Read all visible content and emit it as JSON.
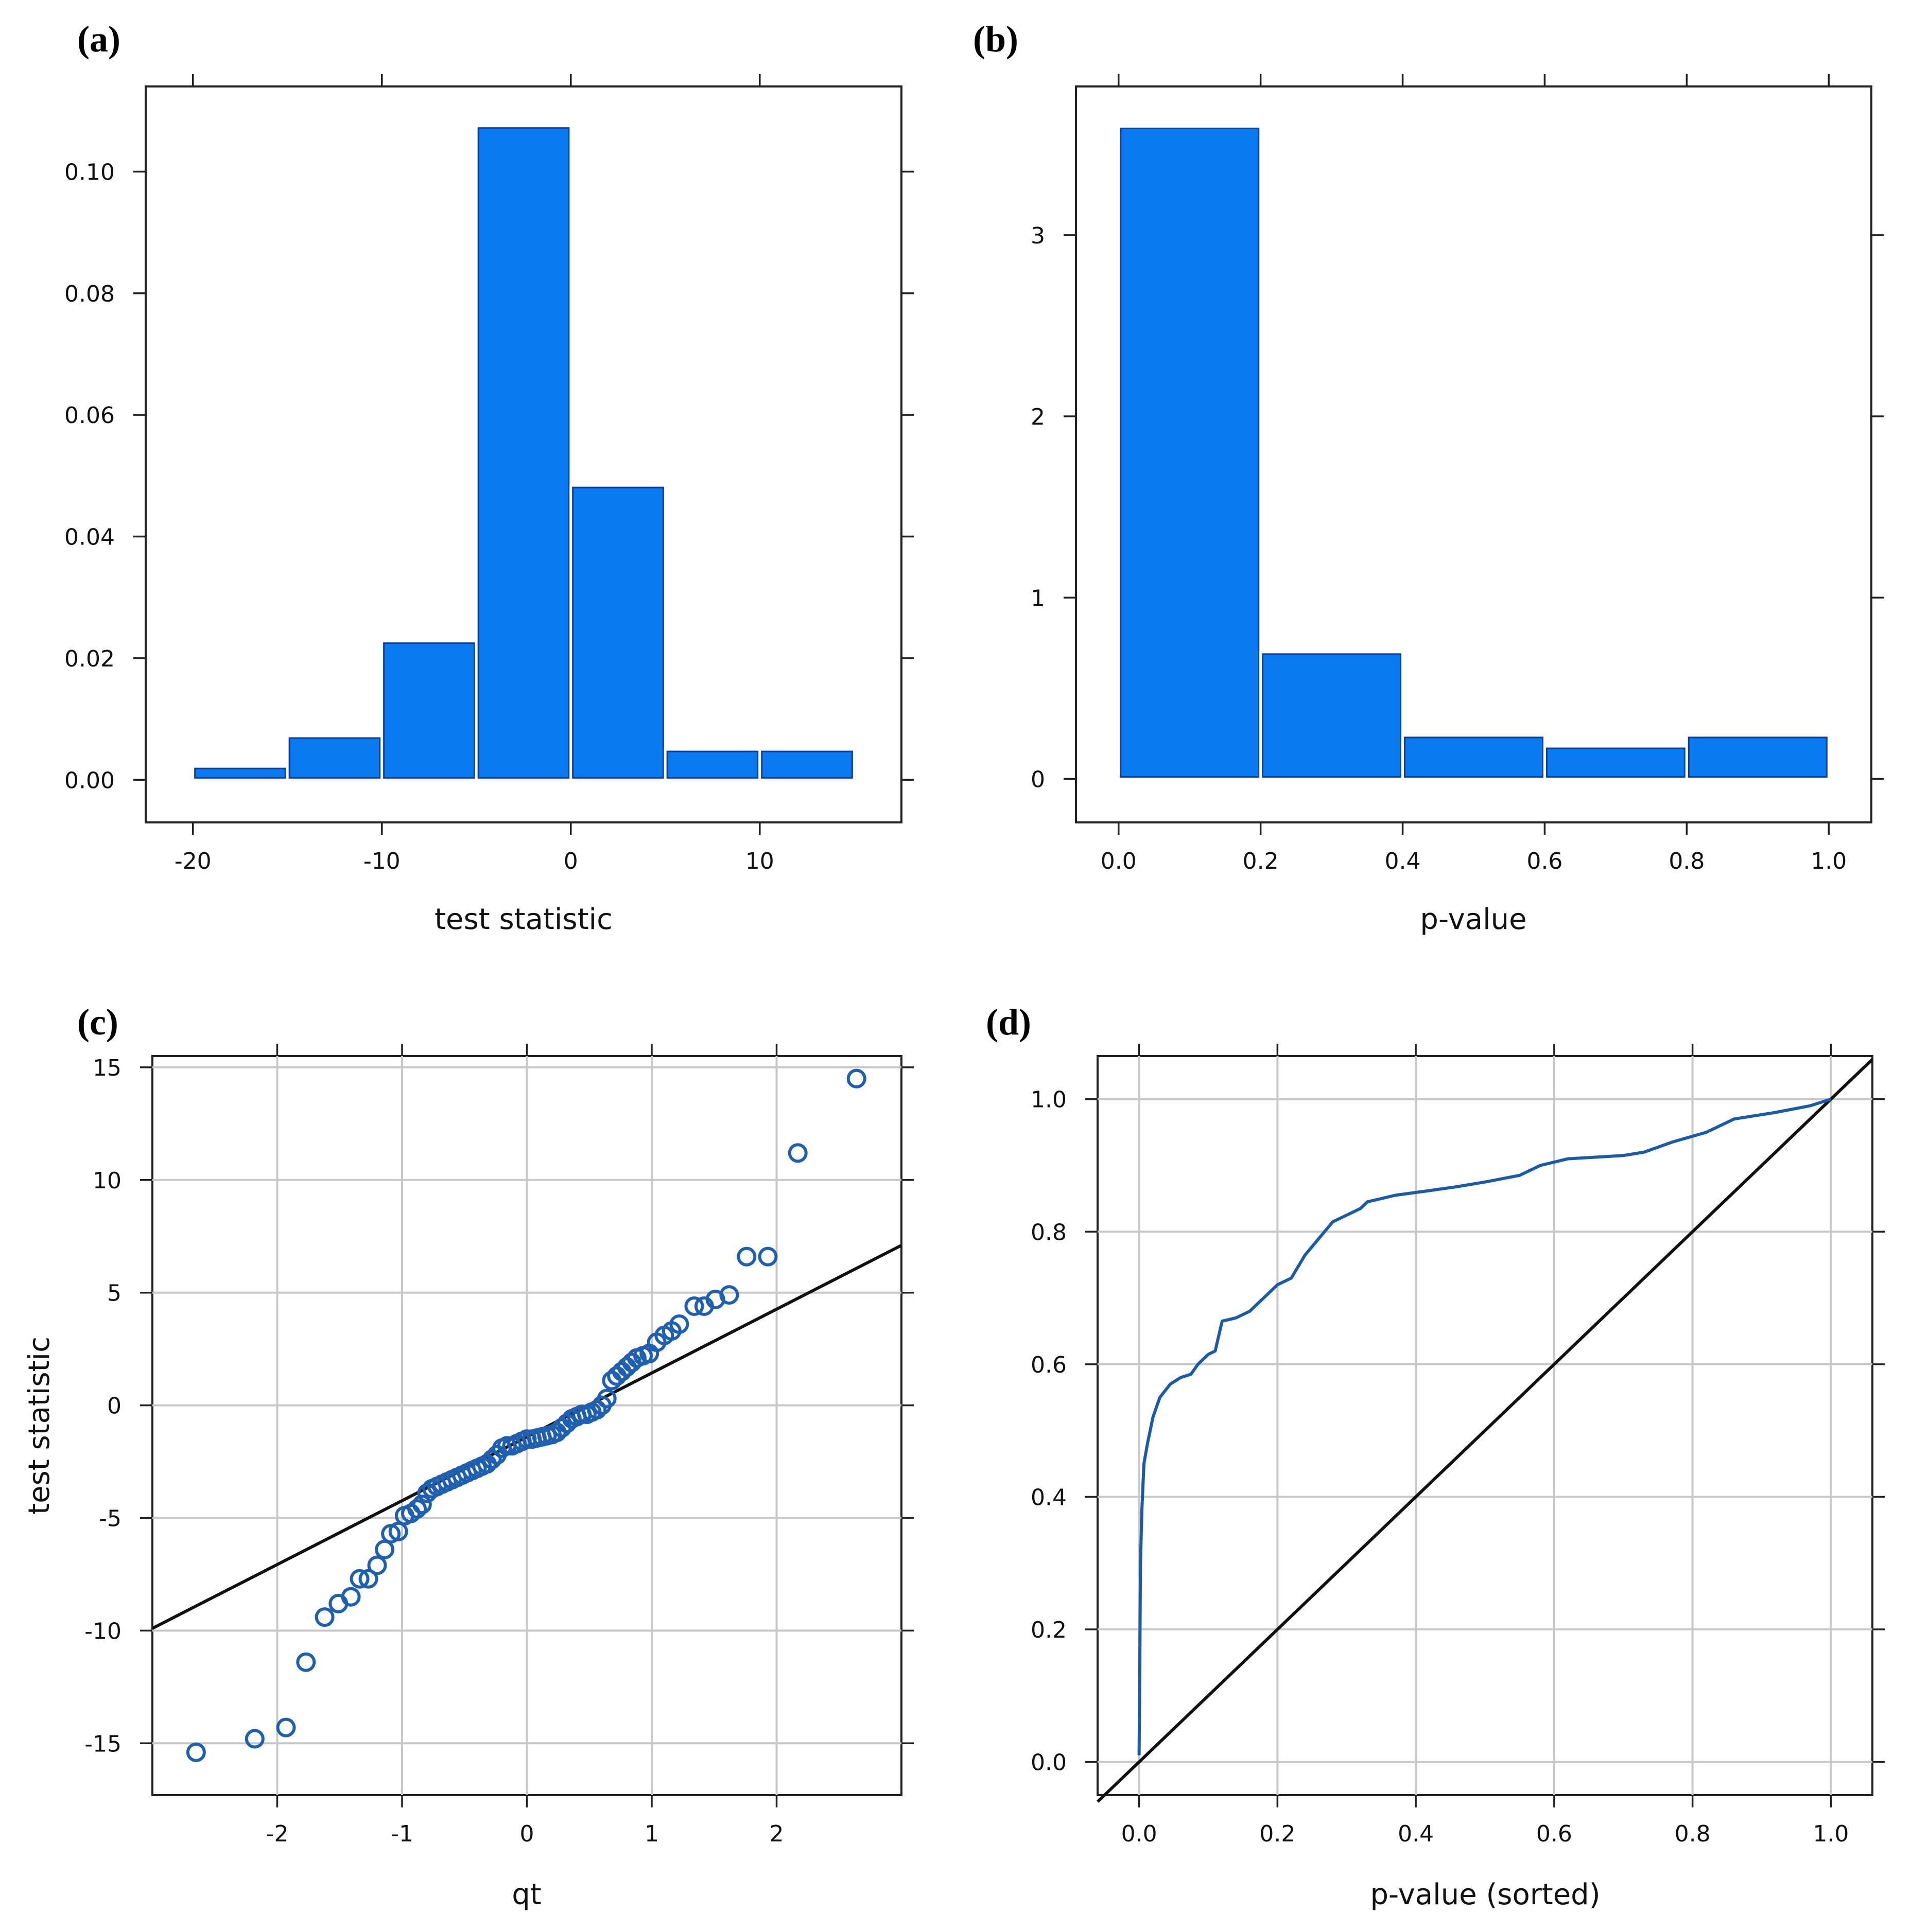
{
  "colors": {
    "bar_fill": "#0a7af0",
    "bar_edge": "#0a3f9a",
    "point": "#1f5fb0",
    "curve": "#1a5aa8",
    "reference_line": "#111111",
    "grid": "#c8c8c8"
  },
  "chart_data": [
    {
      "panel": "(a)",
      "type": "bar",
      "title": "",
      "xlabel": "test statistic",
      "ylabel": "",
      "xlim": [
        -22.5,
        17.5
      ],
      "ylim": [
        -0.007,
        0.114
      ],
      "xticks": [
        -20,
        -10,
        0,
        10
      ],
      "xtick_labels": [
        "-20",
        "-10",
        "0",
        "10"
      ],
      "yticks": [
        0.0,
        0.02,
        0.04,
        0.06,
        0.08,
        0.1
      ],
      "ytick_labels": [
        "0.00",
        "0.02",
        "0.04",
        "0.06",
        "0.08",
        "0.10"
      ],
      "grid": false,
      "bins": [
        {
          "x0": -20,
          "x1": -15,
          "value": 0.0022
        },
        {
          "x0": -15,
          "x1": -10,
          "value": 0.0072
        },
        {
          "x0": -10,
          "x1": -5,
          "value": 0.0228
        },
        {
          "x0": -5,
          "x1": 0,
          "value": 0.1075
        },
        {
          "x0": 0,
          "x1": 5,
          "value": 0.0484
        },
        {
          "x0": 5,
          "x1": 10,
          "value": 0.005
        },
        {
          "x0": 10,
          "x1": 15,
          "value": 0.005
        }
      ]
    },
    {
      "panel": "(b)",
      "type": "bar",
      "title": "",
      "xlabel": "p-value",
      "ylabel": "",
      "xlim": [
        -0.06,
        1.06
      ],
      "ylim": [
        -0.24,
        3.82
      ],
      "xticks": [
        0.0,
        0.2,
        0.4,
        0.6,
        0.8,
        1.0
      ],
      "xtick_labels": [
        "0.0",
        "0.2",
        "0.4",
        "0.6",
        "0.8",
        "1.0"
      ],
      "yticks": [
        0,
        1,
        2,
        3
      ],
      "ytick_labels": [
        "0",
        "1",
        "2",
        "3"
      ],
      "grid": false,
      "bins": [
        {
          "x0": 0.0,
          "x1": 0.2,
          "value": 3.6
        },
        {
          "x0": 0.2,
          "x1": 0.4,
          "value": 0.7
        },
        {
          "x0": 0.4,
          "x1": 0.6,
          "value": 0.24
        },
        {
          "x0": 0.6,
          "x1": 0.8,
          "value": 0.18
        },
        {
          "x0": 0.8,
          "x1": 1.0,
          "value": 0.24
        }
      ]
    },
    {
      "panel": "(c)",
      "type": "scatter",
      "title": "",
      "xlabel": "qt",
      "ylabel": "test statistic",
      "xlim": [
        -3.0,
        3.0
      ],
      "ylim": [
        -17.3,
        15.5
      ],
      "xticks": [
        -2,
        -1,
        0,
        1,
        2
      ],
      "xtick_labels": [
        "-2",
        "-1",
        "0",
        "1",
        "2"
      ],
      "yticks": [
        -15,
        -10,
        -5,
        0,
        5,
        10,
        15
      ],
      "ytick_labels": [
        "-15",
        "-10",
        "-5",
        "0",
        "5",
        "10",
        "15"
      ],
      "grid": true,
      "reference_line": {
        "x": [
          -3.0,
          3.0
        ],
        "y": [
          -9.9,
          7.1
        ]
      },
      "points": [
        [
          -2.65,
          -15.4
        ],
        [
          -2.18,
          -14.8
        ],
        [
          -1.93,
          -14.3
        ],
        [
          -1.77,
          -11.4
        ],
        [
          -1.62,
          -9.4
        ],
        [
          -1.51,
          -8.8
        ],
        [
          -1.41,
          -8.5
        ],
        [
          -1.34,
          -7.7
        ],
        [
          -1.27,
          -7.7
        ],
        [
          -1.2,
          -7.1
        ],
        [
          -1.14,
          -6.4
        ],
        [
          -1.09,
          -5.7
        ],
        [
          -1.03,
          -5.6
        ],
        [
          -0.98,
          -4.9
        ],
        [
          -0.93,
          -4.8
        ],
        [
          -0.88,
          -4.6
        ],
        [
          -0.84,
          -4.4
        ],
        [
          -0.8,
          -3.9
        ],
        [
          -0.76,
          -3.7
        ],
        [
          -0.72,
          -3.6
        ],
        [
          -0.68,
          -3.5
        ],
        [
          -0.64,
          -3.4
        ],
        [
          -0.6,
          -3.3
        ],
        [
          -0.56,
          -3.2
        ],
        [
          -0.52,
          -3.1
        ],
        [
          -0.48,
          -3.0
        ],
        [
          -0.44,
          -2.9
        ],
        [
          -0.4,
          -2.8
        ],
        [
          -0.36,
          -2.7
        ],
        [
          -0.32,
          -2.6
        ],
        [
          -0.28,
          -2.4
        ],
        [
          -0.24,
          -2.2
        ],
        [
          -0.2,
          -1.9
        ],
        [
          -0.16,
          -1.8
        ],
        [
          -0.12,
          -1.8
        ],
        [
          -0.08,
          -1.7
        ],
        [
          -0.04,
          -1.6
        ],
        [
          0.0,
          -1.5
        ],
        [
          0.04,
          -1.5
        ],
        [
          0.08,
          -1.45
        ],
        [
          0.12,
          -1.4
        ],
        [
          0.16,
          -1.35
        ],
        [
          0.2,
          -1.3
        ],
        [
          0.24,
          -1.2
        ],
        [
          0.28,
          -1.0
        ],
        [
          0.32,
          -0.8
        ],
        [
          0.36,
          -0.6
        ],
        [
          0.4,
          -0.5
        ],
        [
          0.44,
          -0.4
        ],
        [
          0.48,
          -0.4
        ],
        [
          0.52,
          -0.3
        ],
        [
          0.56,
          -0.2
        ],
        [
          0.6,
          0.0
        ],
        [
          0.64,
          0.3
        ],
        [
          0.68,
          1.1
        ],
        [
          0.72,
          1.3
        ],
        [
          0.76,
          1.5
        ],
        [
          0.8,
          1.7
        ],
        [
          0.84,
          1.9
        ],
        [
          0.88,
          2.1
        ],
        [
          0.93,
          2.2
        ],
        [
          0.98,
          2.3
        ],
        [
          1.04,
          2.8
        ],
        [
          1.1,
          3.1
        ],
        [
          1.16,
          3.3
        ],
        [
          1.22,
          3.6
        ],
        [
          1.34,
          4.4
        ],
        [
          1.42,
          4.4
        ],
        [
          1.51,
          4.7
        ],
        [
          1.62,
          4.9
        ],
        [
          1.76,
          6.6
        ],
        [
          1.93,
          6.6
        ],
        [
          2.17,
          11.2
        ],
        [
          2.64,
          14.5
        ]
      ]
    },
    {
      "panel": "(d)",
      "type": "line",
      "title": "",
      "xlabel": "p-value (sorted)",
      "ylabel": "",
      "xlim": [
        -0.06,
        1.06
      ],
      "ylim": [
        -0.05,
        1.065
      ],
      "xticks": [
        0.0,
        0.2,
        0.4,
        0.6,
        0.8,
        1.0
      ],
      "xtick_labels": [
        "0.0",
        "0.2",
        "0.4",
        "0.6",
        "0.8",
        "1.0"
      ],
      "yticks": [
        0.0,
        0.2,
        0.4,
        0.6,
        0.8,
        1.0
      ],
      "ytick_labels": [
        "0.0",
        "0.2",
        "0.4",
        "0.6",
        "0.8",
        "1.0"
      ],
      "grid": true,
      "reference_line": {
        "x": [
          -0.06,
          1.06
        ],
        "y": [
          -0.06,
          1.06
        ]
      },
      "curve": [
        [
          0.0,
          0.01
        ],
        [
          0.001,
          0.15
        ],
        [
          0.002,
          0.3
        ],
        [
          0.004,
          0.38
        ],
        [
          0.007,
          0.45
        ],
        [
          0.012,
          0.48
        ],
        [
          0.02,
          0.52
        ],
        [
          0.03,
          0.55
        ],
        [
          0.045,
          0.57
        ],
        [
          0.06,
          0.58
        ],
        [
          0.075,
          0.585
        ],
        [
          0.085,
          0.6
        ],
        [
          0.1,
          0.615
        ],
        [
          0.11,
          0.62
        ],
        [
          0.12,
          0.665
        ],
        [
          0.14,
          0.67
        ],
        [
          0.16,
          0.68
        ],
        [
          0.18,
          0.7
        ],
        [
          0.2,
          0.72
        ],
        [
          0.22,
          0.73
        ],
        [
          0.24,
          0.765
        ],
        [
          0.26,
          0.79
        ],
        [
          0.28,
          0.815
        ],
        [
          0.3,
          0.825
        ],
        [
          0.32,
          0.835
        ],
        [
          0.33,
          0.845
        ],
        [
          0.37,
          0.855
        ],
        [
          0.42,
          0.862
        ],
        [
          0.46,
          0.868
        ],
        [
          0.5,
          0.875
        ],
        [
          0.55,
          0.885
        ],
        [
          0.58,
          0.9
        ],
        [
          0.62,
          0.91
        ],
        [
          0.7,
          0.915
        ],
        [
          0.73,
          0.92
        ],
        [
          0.77,
          0.935
        ],
        [
          0.82,
          0.95
        ],
        [
          0.86,
          0.97
        ],
        [
          0.92,
          0.98
        ],
        [
          0.97,
          0.99
        ],
        [
          1.0,
          1.0
        ]
      ]
    }
  ]
}
